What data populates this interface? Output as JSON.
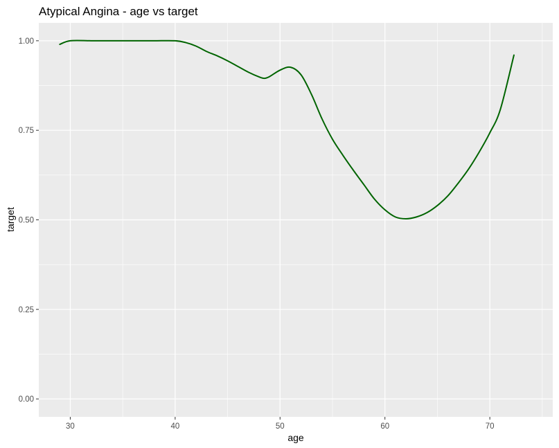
{
  "chart_data": {
    "type": "line",
    "title": "Atypical Angina - age vs target",
    "xlabel": "age",
    "ylabel": "target",
    "xlim": [
      27.0,
      76.0
    ],
    "ylim": [
      -0.05,
      1.05
    ],
    "x_ticks": [
      30,
      40,
      50,
      60,
      70
    ],
    "x_tick_labels": [
      "30",
      "40",
      "50",
      "60",
      "70"
    ],
    "y_ticks": [
      0.0,
      0.25,
      0.5,
      0.75,
      1.0
    ],
    "y_tick_labels": [
      "0.00",
      "0.25",
      "0.50",
      "0.75",
      "1.00"
    ],
    "grid": true,
    "legend": "none",
    "panel_background": "#ebebeb",
    "grid_color": "#ffffff",
    "series": [
      {
        "color": "#006400",
        "x": [
          29,
          30,
          32,
          34,
          36,
          38,
          40,
          41,
          42,
          43,
          44,
          45,
          46,
          47,
          48,
          48.5,
          49,
          50,
          51,
          52,
          53,
          54,
          55,
          56,
          57,
          58,
          59,
          60,
          61,
          62,
          63,
          64,
          65,
          66,
          67,
          68,
          69,
          70,
          71,
          72.3
        ],
        "y": [
          0.99,
          1.0,
          1.0,
          1.0,
          1.0,
          1.0,
          1.0,
          0.995,
          0.985,
          0.97,
          0.958,
          0.944,
          0.928,
          0.912,
          0.899,
          0.895,
          0.9,
          0.918,
          0.926,
          0.905,
          0.85,
          0.782,
          0.725,
          0.68,
          0.638,
          0.598,
          0.558,
          0.528,
          0.508,
          0.503,
          0.508,
          0.52,
          0.54,
          0.567,
          0.603,
          0.643,
          0.69,
          0.743,
          0.808,
          0.96
        ]
      }
    ]
  }
}
